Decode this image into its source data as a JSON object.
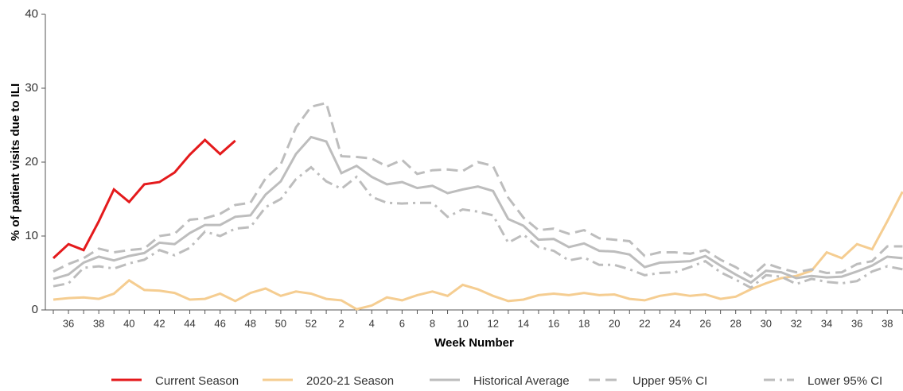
{
  "chart_data": {
    "type": "line",
    "x_label": "Week Number",
    "y_label": "% of patient visits due to ILI",
    "categories": [
      null,
      36,
      null,
      38,
      null,
      40,
      null,
      42,
      null,
      44,
      null,
      46,
      null,
      48,
      null,
      50,
      null,
      52,
      null,
      2,
      null,
      4,
      null,
      6,
      null,
      8,
      null,
      10,
      null,
      12,
      null,
      14,
      null,
      16,
      null,
      18,
      null,
      20,
      null,
      22,
      null,
      24,
      null,
      26,
      null,
      28,
      null,
      30,
      null,
      32,
      null,
      34,
      null,
      36,
      null,
      38,
      null
    ],
    "ylim": [
      0,
      40
    ],
    "yticks": [
      0,
      10,
      20,
      30,
      40
    ],
    "series": [
      {
        "name": "Current Season",
        "color": "#e41a1c",
        "dash": "solid",
        "values": [
          7.0,
          8.9,
          8.1,
          12.0,
          16.3,
          14.6,
          17.0,
          17.3,
          18.6,
          21.0,
          23.0,
          21.1,
          22.9,
          null,
          null,
          null,
          null,
          null,
          null,
          null,
          null,
          null,
          null,
          null,
          null,
          null,
          null,
          null,
          null,
          null,
          null,
          null,
          null,
          null,
          null,
          null,
          null,
          null,
          null,
          null,
          null,
          null,
          null,
          null,
          null,
          null,
          null,
          null,
          null,
          null,
          null,
          null,
          null,
          null,
          null,
          null,
          null
        ]
      },
      {
        "name": "2020-21 Season",
        "color": "#f5cd91",
        "dash": "solid",
        "values": [
          1.4,
          1.6,
          1.7,
          1.5,
          2.2,
          4.0,
          2.7,
          2.6,
          2.3,
          1.4,
          1.5,
          2.2,
          1.2,
          2.3,
          2.9,
          1.9,
          2.5,
          2.2,
          1.5,
          1.3,
          0.1,
          0.6,
          1.7,
          1.3,
          2.0,
          2.5,
          1.9,
          3.4,
          2.8,
          1.9,
          1.2,
          1.4,
          2.0,
          2.2,
          2.0,
          2.3,
          2.0,
          2.1,
          1.5,
          1.3,
          1.9,
          2.2,
          1.9,
          2.1,
          1.5,
          1.8,
          2.8,
          3.6,
          4.3,
          4.6,
          5.3,
          7.8,
          7.0,
          8.9,
          8.2,
          12.0,
          16.0
        ]
      },
      {
        "name": "Historical Average",
        "color": "#bdbdbd",
        "dash": "solid",
        "values": [
          4.2,
          4.8,
          6.4,
          7.2,
          6.7,
          7.3,
          7.7,
          9.1,
          8.9,
          10.4,
          11.5,
          11.5,
          12.6,
          12.8,
          15.6,
          17.4,
          21.1,
          23.4,
          22.8,
          18.5,
          19.5,
          18.0,
          17.0,
          17.3,
          16.5,
          16.8,
          15.8,
          16.3,
          16.7,
          16.1,
          12.3,
          11.4,
          9.5,
          9.6,
          8.5,
          9.0,
          8.0,
          7.9,
          7.5,
          5.8,
          6.4,
          6.5,
          6.6,
          7.3,
          6.0,
          4.8,
          3.7,
          5.3,
          5.1,
          4.3,
          4.6,
          4.4,
          4.5,
          5.2,
          6.0,
          7.2,
          7.0
        ]
      },
      {
        "name": "Upper 95% CI",
        "color": "#bdbdbd",
        "dash": "dashed",
        "values": [
          5.2,
          6.2,
          7.0,
          8.3,
          7.8,
          8.1,
          8.3,
          10.0,
          10.3,
          12.2,
          12.4,
          13.0,
          14.2,
          14.5,
          17.8,
          19.7,
          24.7,
          27.5,
          28.0,
          20.8,
          20.7,
          20.5,
          19.4,
          20.3,
          18.4,
          18.9,
          19.0,
          18.8,
          20.0,
          19.5,
          15.2,
          12.5,
          10.8,
          11.0,
          10.3,
          10.8,
          9.7,
          9.5,
          9.3,
          7.3,
          7.8,
          7.8,
          7.6,
          8.1,
          6.8,
          5.8,
          4.5,
          6.3,
          5.6,
          5.1,
          5.5,
          5.0,
          5.1,
          6.2,
          6.6,
          8.6,
          8.6
        ]
      },
      {
        "name": "Lower 95% CI",
        "color": "#bdbdbd",
        "dash": "dashdot",
        "values": [
          3.2,
          3.6,
          5.7,
          5.9,
          5.6,
          6.3,
          6.8,
          8.1,
          7.4,
          8.4,
          10.6,
          10.0,
          11.0,
          11.2,
          13.9,
          15.0,
          17.7,
          19.3,
          17.4,
          16.4,
          18.0,
          15.3,
          14.5,
          14.4,
          14.5,
          14.5,
          12.6,
          13.6,
          13.3,
          12.8,
          9.1,
          10.2,
          8.5,
          8.0,
          6.7,
          7.1,
          6.1,
          6.1,
          5.5,
          4.7,
          5.0,
          5.1,
          5.8,
          6.6,
          5.1,
          4.1,
          3.0,
          4.7,
          4.5,
          3.5,
          4.2,
          3.8,
          3.6,
          3.9,
          5.2,
          5.9,
          5.5
        ]
      }
    ]
  }
}
